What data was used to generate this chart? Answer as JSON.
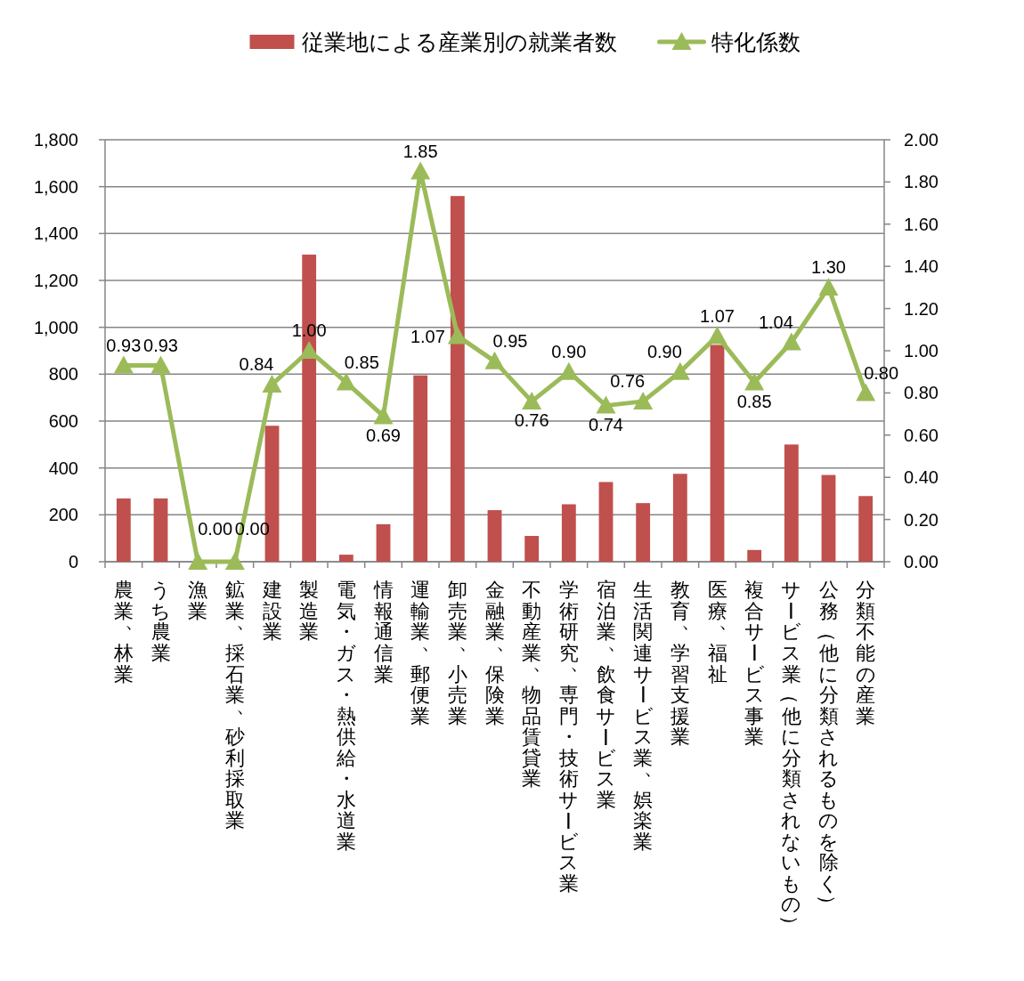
{
  "chart_data": {
    "type": "bar",
    "categories": [
      "農業、林業",
      "うち農業",
      "漁業",
      "鉱業、採石業、砂利採取業",
      "建設業",
      "製造業",
      "電気・ガス・熱供給・水道業",
      "情報通信業",
      "運輸業、郵便業",
      "卸売業、小売業",
      "金融業、保険業",
      "不動産業、物品賃貸業",
      "学術研究、専門・技術サービス業",
      "宿泊業、飲食サービス業",
      "生活関連サービス業、娯楽業",
      "教育、学習支援業",
      "医療、福祉",
      "複合サービス事業",
      "サービス業（他に分類されないもの）",
      "公務（他に分類されるものを除く）",
      "分類不能の産業"
    ],
    "series": [
      {
        "name": "従業地による産業別の就業者数",
        "color": "#c0504d",
        "values": [
          270,
          270,
          0,
          0,
          580,
          1310,
          30,
          160,
          795,
          1560,
          220,
          110,
          245,
          340,
          250,
          375,
          925,
          50,
          500,
          370,
          280
        ]
      },
      {
        "name": "特化係数",
        "type": "line",
        "axis": "y2",
        "color": "#9bbb59",
        "values": [
          0.93,
          0.93,
          0.0,
          0.0,
          0.84,
          1.0,
          0.85,
          0.69,
          1.85,
          1.07,
          0.95,
          0.76,
          0.9,
          0.74,
          0.76,
          0.9,
          1.07,
          0.85,
          1.04,
          1.3,
          0.8
        ],
        "value_labels": [
          "0.93",
          "0.93",
          "0.00",
          "0.00",
          "0.84",
          "1.00",
          "0.85",
          "0.69",
          "1.85",
          "1.07",
          "0.95",
          "0.76",
          "0.90",
          "0.74",
          "0.76",
          "0.90",
          "1.07",
          "0.85",
          "1.04",
          "1.30",
          "0.80"
        ]
      }
    ],
    "ylim": [
      0,
      1800
    ],
    "yticks": [
      0,
      200,
      400,
      600,
      800,
      {
        "value": 1000,
        "label": "1,000"
      },
      {
        "value": 1200,
        "label": "1,200"
      },
      {
        "value": 1400,
        "label": "1,400"
      },
      {
        "value": 1600,
        "label": "1,600"
      },
      {
        "value": 1800,
        "label": "1,800"
      }
    ],
    "y2lim": [
      0,
      2
    ],
    "y2ticks": [
      {
        "value": 0,
        "label": "0.00"
      },
      {
        "value": 0.2,
        "label": "0.20"
      },
      {
        "value": 0.4,
        "label": "0.40"
      },
      {
        "value": 0.6,
        "label": "0.60"
      },
      {
        "value": 0.8,
        "label": "0.80"
      },
      {
        "value": 1,
        "label": "1.00"
      },
      {
        "value": 1.2,
        "label": "1.20"
      },
      {
        "value": 1.4,
        "label": "1.40"
      },
      {
        "value": 1.6,
        "label": "1.60"
      },
      {
        "value": 1.8,
        "label": "1.80"
      },
      {
        "value": 2,
        "label": "2.00"
      }
    ],
    "grid": "y",
    "legend": "top",
    "marker": "triangle",
    "line_style": "solid"
  }
}
